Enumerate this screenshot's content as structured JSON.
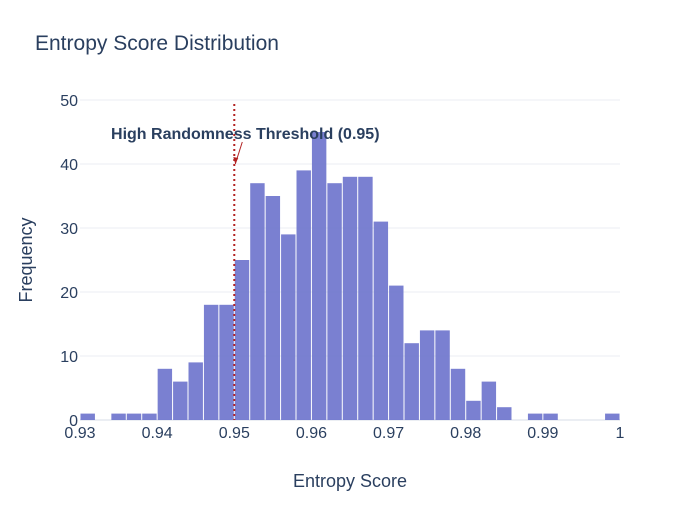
{
  "chart_data": {
    "type": "bar",
    "title": "Entropy Score Distribution",
    "xlabel": "Entropy Score",
    "ylabel": "Frequency",
    "xlim": [
      0.93,
      1.0
    ],
    "ylim": [
      0,
      50
    ],
    "x_ticks": [
      0.93,
      0.94,
      0.95,
      0.96,
      0.97,
      0.98,
      0.99,
      1.0
    ],
    "x_tick_labels": [
      "0.93",
      "0.94",
      "0.95",
      "0.96",
      "0.97",
      "0.98",
      "0.99",
      "1"
    ],
    "y_ticks": [
      0,
      10,
      20,
      30,
      40,
      50
    ],
    "bin_width": 0.002,
    "bins": [
      {
        "x0": 0.93,
        "value": 1
      },
      {
        "x0": 0.934,
        "value": 1
      },
      {
        "x0": 0.936,
        "value": 1
      },
      {
        "x0": 0.938,
        "value": 1
      },
      {
        "x0": 0.94,
        "value": 8
      },
      {
        "x0": 0.942,
        "value": 6
      },
      {
        "x0": 0.944,
        "value": 9
      },
      {
        "x0": 0.946,
        "value": 18
      },
      {
        "x0": 0.948,
        "value": 18
      },
      {
        "x0": 0.95,
        "value": 25
      },
      {
        "x0": 0.952,
        "value": 37
      },
      {
        "x0": 0.954,
        "value": 35
      },
      {
        "x0": 0.956,
        "value": 29
      },
      {
        "x0": 0.958,
        "value": 39
      },
      {
        "x0": 0.96,
        "value": 45
      },
      {
        "x0": 0.962,
        "value": 37
      },
      {
        "x0": 0.964,
        "value": 38
      },
      {
        "x0": 0.966,
        "value": 38
      },
      {
        "x0": 0.968,
        "value": 31
      },
      {
        "x0": 0.97,
        "value": 21
      },
      {
        "x0": 0.972,
        "value": 12
      },
      {
        "x0": 0.974,
        "value": 14
      },
      {
        "x0": 0.976,
        "value": 14
      },
      {
        "x0": 0.978,
        "value": 8
      },
      {
        "x0": 0.98,
        "value": 3
      },
      {
        "x0": 0.982,
        "value": 6
      },
      {
        "x0": 0.984,
        "value": 2
      },
      {
        "x0": 0.988,
        "value": 1
      },
      {
        "x0": 0.99,
        "value": 1
      },
      {
        "x0": 0.998,
        "value": 1
      }
    ],
    "bar_color": "#6c72cc",
    "grid": true,
    "threshold": {
      "x": 0.95,
      "color": "#b22222",
      "style": "dotted",
      "annotation": "High Randomness Threshold (0.95)",
      "annotation_y": 40
    }
  }
}
